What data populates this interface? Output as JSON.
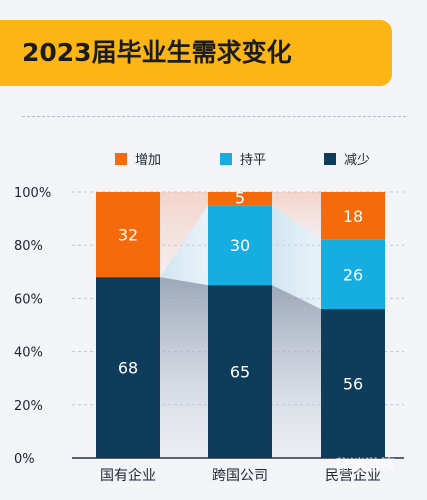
{
  "header": {
    "title": "2023届毕业生需求变化"
  },
  "chart_data": {
    "type": "bar",
    "stacked": true,
    "title": "2023届毕业生需求变化",
    "categories": [
      "国有企业",
      "跨国公司",
      "民营企业"
    ],
    "series": [
      {
        "name": "减少",
        "values": [
          68,
          65,
          56
        ],
        "color": "#0e3d5c",
        "label_color": "#ffffff"
      },
      {
        "name": "持平",
        "values": [
          0,
          30,
          26
        ],
        "color": "#16aee0",
        "label_color": "#ffffff"
      },
      {
        "name": "增加",
        "values": [
          32,
          5,
          18
        ],
        "color": "#f56b0c",
        "label_color": "#ffffff"
      }
    ],
    "legend_order": [
      "增加",
      "持平",
      "减少"
    ],
    "legend_position": "top",
    "ylim": [
      0,
      100
    ],
    "yticks": [
      "0%",
      "20%",
      "40%",
      "60%",
      "80%",
      "100%"
    ],
    "grid": true,
    "xlabel": "",
    "ylabel": ""
  },
  "watermark": {
    "text": "秘迷游筷"
  }
}
